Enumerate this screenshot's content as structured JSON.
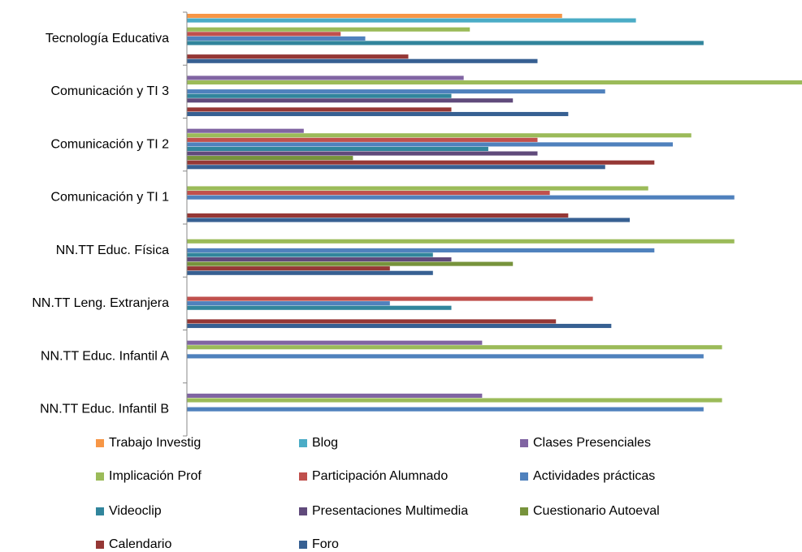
{
  "chart_data": {
    "type": "hbar",
    "categories": [
      "Tecnología Educativa",
      "Comunicación y TI 3",
      "Comunicación y TI 2",
      "Comunicación y TI 1",
      "NN.TT Educ. Física",
      "NN.TT Leng. Extranjera",
      "NN.TT Educ. Infantil A",
      "NN.TT Educ. Infantil B"
    ],
    "xlim": [
      0,
      100
    ],
    "series": [
      {
        "name": "Trabajo Investig",
        "color": "#f79646",
        "values": [
          61,
          0,
          0,
          0,
          0,
          0,
          0,
          0
        ]
      },
      {
        "name": "Blog",
        "color": "#4bacc6",
        "values": [
          73,
          0,
          0,
          0,
          0,
          0,
          0,
          0
        ]
      },
      {
        "name": "Clases Presenciales",
        "color": "#8064a2",
        "values": [
          0,
          45,
          19,
          0,
          0,
          0,
          48,
          48
        ]
      },
      {
        "name": "Implicación Prof",
        "color": "#9bbb59",
        "values": [
          46,
          100,
          82,
          75,
          89,
          0,
          87,
          87
        ]
      },
      {
        "name": "Participación Alumnado",
        "color": "#c0504d",
        "values": [
          25,
          0,
          57,
          59,
          0,
          66,
          0,
          0
        ]
      },
      {
        "name": "Actividades prácticas",
        "color": "#4f81bd",
        "values": [
          29,
          68,
          79,
          89,
          76,
          33,
          84,
          84
        ]
      },
      {
        "name": "Videoclip",
        "color": "#31859c",
        "values": [
          84,
          43,
          49,
          0,
          40,
          43,
          0,
          0
        ]
      },
      {
        "name": "Presentaciones Multimedia",
        "color": "#604a7b",
        "values": [
          0,
          53,
          57,
          0,
          43,
          0,
          0,
          0
        ]
      },
      {
        "name": "Cuestionario Autoeval",
        "color": "#77933c",
        "values": [
          0,
          0,
          27,
          0,
          53,
          0,
          0,
          0
        ]
      },
      {
        "name": "Calendario",
        "color": "#953735",
        "values": [
          36,
          43,
          76,
          62,
          33,
          60,
          0,
          0
        ]
      },
      {
        "name": "Foro",
        "color": "#376092",
        "values": [
          57,
          62,
          68,
          72,
          40,
          69,
          0,
          0
        ]
      }
    ]
  }
}
